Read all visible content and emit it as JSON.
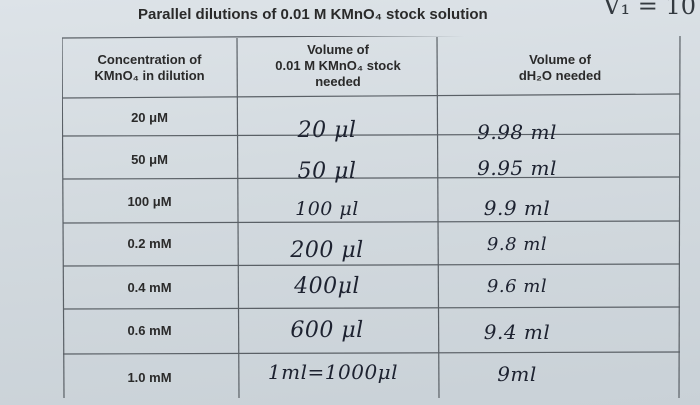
{
  "title": "Parallel dilutions of 0.01 M KMnO₄ stock solution",
  "corner_note": "V₁ = 10",
  "headers": {
    "col1": [
      "Concentration of",
      "KMnO₄ in dilution"
    ],
    "col2": [
      "Volume of",
      "0.01 M KMnO₄ stock",
      "needed"
    ],
    "col3": [
      "Volume of",
      "dH₂O needed"
    ]
  },
  "rows": [
    {
      "concentration": "20 μM",
      "stock_volume": "20 μl",
      "water_volume": "9.98 ml"
    },
    {
      "concentration": "50 μM",
      "stock_volume": "50 μl",
      "water_volume": "9.95 ml"
    },
    {
      "concentration": "100 μM",
      "stock_volume": "100 μl",
      "water_volume": "9.9 ml"
    },
    {
      "concentration": "0.2 mM",
      "stock_volume": "200 μl",
      "water_volume": "9.8 ml"
    },
    {
      "concentration": "0.4 mM",
      "stock_volume": "400μl",
      "water_volume": "9.6 ml"
    },
    {
      "concentration": "0.6 mM",
      "stock_volume": "600 μl",
      "water_volume": "9.4 ml"
    },
    {
      "concentration": "1.0 mM",
      "stock_volume": "1ml=1000μl",
      "water_volume": "9ml"
    }
  ]
}
